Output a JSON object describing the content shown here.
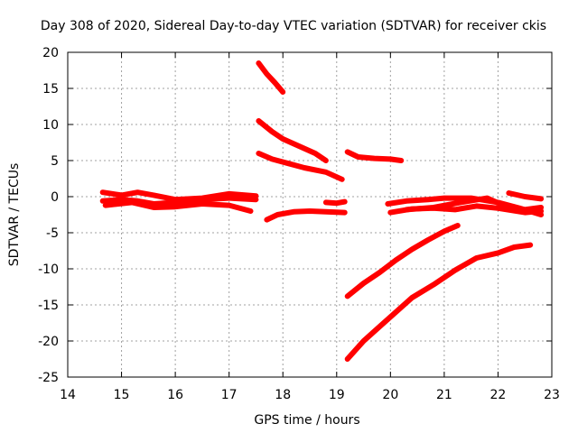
{
  "chart_data": {
    "type": "line",
    "title": "Day 308 of 2020, Sidereal Day-to-day VTEC variation (SDTVAR) for receiver ckis",
    "xlabel": "GPS time / hours",
    "ylabel": "SDTVAR / TECUs",
    "xlim": [
      14,
      23
    ],
    "ylim": [
      -25,
      20
    ],
    "xticks": [
      "14",
      "15",
      "16",
      "17",
      "18",
      "19",
      "20",
      "21",
      "22",
      "23"
    ],
    "yticks": [
      "20",
      "15",
      "10",
      "5",
      "0",
      "-5",
      "-10",
      "-15",
      "-20",
      "-25"
    ],
    "grid": true,
    "color": "#ff0000",
    "series": [
      {
        "x": [
          14.65,
          15.0,
          15.3,
          15.6,
          16.0,
          16.5,
          17.0,
          17.5
        ],
        "y": [
          0.6,
          0.2,
          0.6,
          0.2,
          -0.4,
          -0.2,
          0.4,
          0.1
        ]
      },
      {
        "x": [
          14.65,
          15.0,
          15.3,
          15.6,
          16.0,
          16.5,
          17.0,
          17.5
        ],
        "y": [
          -0.6,
          -0.4,
          -0.6,
          -1.0,
          -0.8,
          -0.4,
          -0.2,
          -0.4
        ]
      },
      {
        "x": [
          14.7,
          15.2,
          15.6,
          16.0,
          16.5,
          17.0,
          17.4
        ],
        "y": [
          -1.2,
          -0.8,
          -1.5,
          -1.4,
          -1.0,
          -1.2,
          -2.0
        ]
      },
      {
        "x": [
          17.55,
          17.7,
          17.85,
          18.0
        ],
        "y": [
          18.5,
          17.0,
          15.8,
          14.5
        ]
      },
      {
        "x": [
          17.55,
          17.8,
          18.0,
          18.3,
          18.6,
          18.8
        ],
        "y": [
          10.5,
          9.0,
          8.0,
          7.0,
          6.0,
          5.0
        ]
      },
      {
        "x": [
          17.55,
          17.8,
          18.1,
          18.4,
          18.8,
          19.1
        ],
        "y": [
          6.0,
          5.2,
          4.6,
          4.0,
          3.4,
          2.4
        ]
      },
      {
        "x": [
          17.7,
          17.9,
          18.2,
          18.5,
          18.8,
          19.15
        ],
        "y": [
          -3.2,
          -2.5,
          -2.1,
          -2.0,
          -2.1,
          -2.2
        ]
      },
      {
        "x": [
          18.8,
          19.0,
          19.15
        ],
        "y": [
          -0.8,
          -0.9,
          -0.7
        ]
      },
      {
        "x": [
          19.2,
          19.4,
          19.7,
          20.0,
          20.2
        ],
        "y": [
          6.2,
          5.5,
          5.3,
          5.2,
          5.0
        ]
      },
      {
        "x": [
          19.95,
          20.3,
          20.7,
          21.0,
          21.5,
          22.0,
          22.4,
          22.8
        ],
        "y": [
          -1.0,
          -0.6,
          -0.4,
          -0.2,
          -0.2,
          -0.8,
          -1.6,
          -2.5
        ]
      },
      {
        "x": [
          20.0,
          20.4,
          20.8,
          21.2,
          21.6,
          22.0,
          22.5,
          22.8
        ],
        "y": [
          -2.2,
          -1.7,
          -1.6,
          -1.8,
          -1.3,
          -1.6,
          -2.2,
          -2.0
        ]
      },
      {
        "x": [
          20.3,
          20.8,
          21.3,
          21.8,
          22.1,
          22.5,
          22.8
        ],
        "y": [
          -1.8,
          -1.5,
          -0.8,
          -0.2,
          -1.2,
          -1.8,
          -1.5
        ]
      },
      {
        "x": [
          22.2,
          22.5,
          22.8
        ],
        "y": [
          0.5,
          0.0,
          -0.3
        ]
      },
      {
        "x": [
          19.2,
          19.5,
          19.8,
          20.1,
          20.4,
          20.7,
          21.0,
          21.25
        ],
        "y": [
          -13.8,
          -12.0,
          -10.5,
          -8.8,
          -7.3,
          -6.0,
          -4.8,
          -4.0
        ]
      },
      {
        "x": [
          19.2,
          19.5,
          19.8,
          20.1,
          20.4,
          20.8,
          21.2,
          21.6,
          22.0,
          22.3,
          22.6
        ],
        "y": [
          -22.5,
          -20.0,
          -18.0,
          -16.0,
          -14.0,
          -12.2,
          -10.2,
          -8.5,
          -7.8,
          -7.0,
          -6.7
        ]
      }
    ]
  }
}
